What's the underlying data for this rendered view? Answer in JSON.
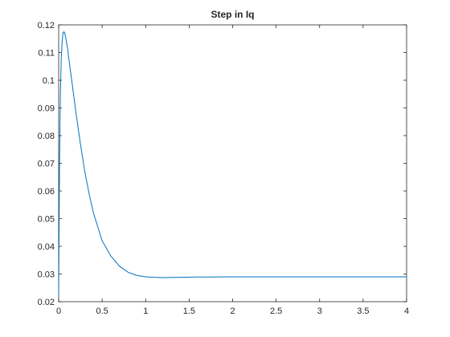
{
  "chart_data": {
    "type": "line",
    "title": "Step in Iq",
    "x": [
      0,
      0.01,
      0.02,
      0.03,
      0.04,
      0.05,
      0.06,
      0.07,
      0.08,
      0.1,
      0.12,
      0.15,
      0.2,
      0.25,
      0.3,
      0.35,
      0.4,
      0.45,
      0.5,
      0.6,
      0.7,
      0.8,
      0.9,
      1.0,
      1.1,
      1.2,
      1.4,
      1.6,
      2,
      2.5,
      3,
      3.5,
      4
    ],
    "series": [
      {
        "color": "#0072bd",
        "values": [
          0.022,
          0.07,
          0.095,
          0.108,
          0.114,
          0.117,
          0.1175,
          0.117,
          0.1155,
          0.112,
          0.107,
          0.1,
          0.088,
          0.077,
          0.067,
          0.059,
          0.052,
          0.047,
          0.042,
          0.0365,
          0.0328,
          0.0306,
          0.0295,
          0.029,
          0.0288,
          0.0287,
          0.0288,
          0.0289,
          0.029,
          0.029,
          0.029,
          0.029,
          0.029
        ]
      }
    ],
    "xlim": [
      0,
      4
    ],
    "xticks": [
      0,
      0.5,
      1,
      1.5,
      2,
      2.5,
      3,
      3.5,
      4
    ],
    "ylim": [
      0.02,
      0.12
    ],
    "yticks": [
      0.02,
      0.03,
      0.04,
      0.05,
      0.06,
      0.07,
      0.08,
      0.09,
      0.1,
      0.11,
      0.12
    ]
  }
}
